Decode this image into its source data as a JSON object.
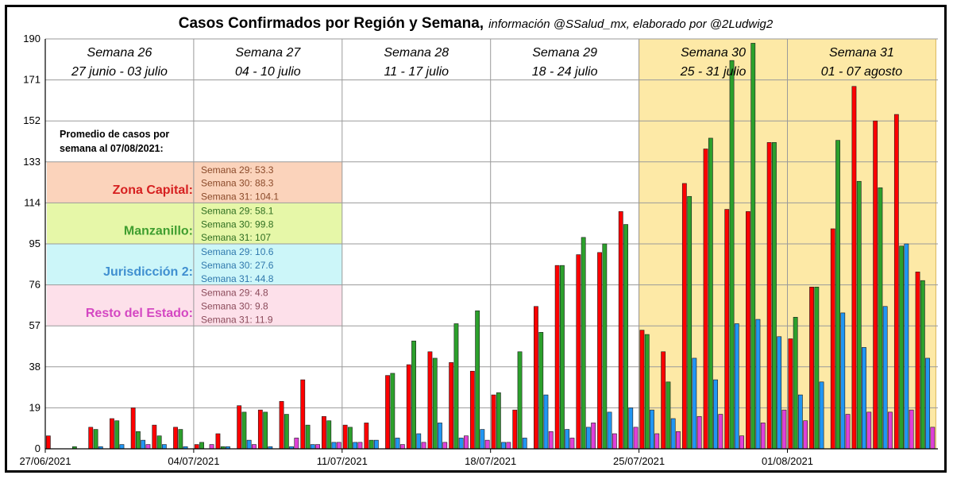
{
  "chart_data": {
    "type": "bar",
    "title": "Casos Confirmados por Región y Semana,",
    "subtitle": "información @SSalud_mx, elaborado por @2Ludwig2",
    "ylim": [
      0,
      190
    ],
    "yticks": [
      "0",
      "19",
      "38",
      "57",
      "76",
      "95",
      "114",
      "133",
      "152",
      "171",
      "190"
    ],
    "xticks": [
      {
        "label": "27/06/2021",
        "day": 0
      },
      {
        "label": "04/07/2021",
        "day": 7
      },
      {
        "label": "11/07/2021",
        "day": 14
      },
      {
        "label": "18/07/2021",
        "day": 21
      },
      {
        "label": "25/07/2021",
        "day": 28
      },
      {
        "label": "01/08/2021",
        "day": 35
      }
    ],
    "weeks": [
      {
        "name": "Semana 26",
        "range": "27 junio - 03 julio",
        "highlight": false
      },
      {
        "name": "Semana 27",
        "range": "04 - 10 julio",
        "highlight": false
      },
      {
        "name": "Semana 28",
        "range": "11 - 17 julio",
        "highlight": false
      },
      {
        "name": "Semana 29",
        "range": "18 - 24 julio",
        "highlight": false
      },
      {
        "name": "Semana 30",
        "range": "25 - 31 julio",
        "highlight": true
      },
      {
        "name": "Semana 31",
        "range": "01 - 07 agosto",
        "highlight": true
      }
    ],
    "series": [
      {
        "color": "#ff0000",
        "values": [
          6,
          0,
          10,
          14,
          19,
          11,
          10,
          2,
          7,
          20,
          18,
          22,
          32,
          15,
          11,
          12,
          34,
          39,
          45,
          40,
          36,
          25,
          18,
          66,
          85,
          90,
          91,
          110,
          55,
          45,
          123,
          139,
          111,
          110,
          142,
          51,
          75,
          102,
          168,
          152,
          155,
          82
        ]
      },
      {
        "color": "#2ca02c",
        "values": [
          0,
          1,
          9,
          13,
          8,
          6,
          9,
          3,
          1,
          17,
          17,
          16,
          11,
          13,
          10,
          4,
          35,
          50,
          42,
          58,
          64,
          26,
          45,
          54,
          85,
          98,
          95,
          104,
          53,
          31,
          117,
          144,
          180,
          188,
          142,
          61,
          75,
          143,
          124,
          121,
          94,
          78
        ]
      },
      {
        "color": "#2196f3",
        "values": [
          0,
          0,
          1,
          2,
          4,
          2,
          1,
          0,
          1,
          4,
          1,
          1,
          2,
          3,
          3,
          4,
          5,
          7,
          12,
          5,
          9,
          3,
          5,
          25,
          9,
          10,
          17,
          19,
          18,
          14,
          42,
          32,
          58,
          60,
          52,
          25,
          31,
          63,
          47,
          66,
          95,
          42
        ]
      },
      {
        "color": "#e040d8",
        "values": [
          0,
          0,
          0,
          0,
          2,
          0,
          0,
          2,
          0,
          2,
          0,
          5,
          2,
          3,
          3,
          0,
          2,
          3,
          3,
          6,
          4,
          3,
          0,
          8,
          5,
          12,
          7,
          10,
          7,
          8,
          15,
          16,
          6,
          12,
          18,
          13,
          0,
          16,
          17,
          17,
          18,
          10
        ]
      }
    ],
    "average_box": {
      "title_line1": "Promedio de casos por",
      "title_line2": "semana al 07/08/2021:",
      "regions": [
        {
          "name": "Zona Capital:",
          "name_color": "#d62020",
          "bg": "#fbd3bb",
          "text_color": "#8b4a2a",
          "lines": [
            "Semana 29: 53.3",
            "Semana 30: 88.3",
            "Semana 31: 104.1"
          ]
        },
        {
          "name": "Manzanillo:",
          "name_color": "#3f9e2f",
          "bg": "#e6f7a8",
          "text_color": "#2f6e20",
          "lines": [
            "Semana 29: 58.1",
            "Semana 30: 99.8",
            "Semana 31: 107"
          ]
        },
        {
          "name": "Jurisdicción 2:",
          "name_color": "#3f8fd0",
          "bg": "#ccf6f9",
          "text_color": "#2f78ad",
          "lines": [
            "Semana 29: 10.6",
            "Semana 30: 27.6",
            "Semana 31: 44.8"
          ]
        },
        {
          "name": "Resto del Estado:",
          "name_color": "#d447c2",
          "bg": "#fde0ea",
          "text_color": "#8b4a5a",
          "lines": [
            "Semana 29: 4.8",
            "Semana 30: 9.8",
            "Semana 31: 11.9"
          ]
        }
      ]
    },
    "colors": {
      "highlight_bg": "#fde9a6",
      "highlight_border": "#d9b45a",
      "grid": "#9a9a9a"
    }
  }
}
